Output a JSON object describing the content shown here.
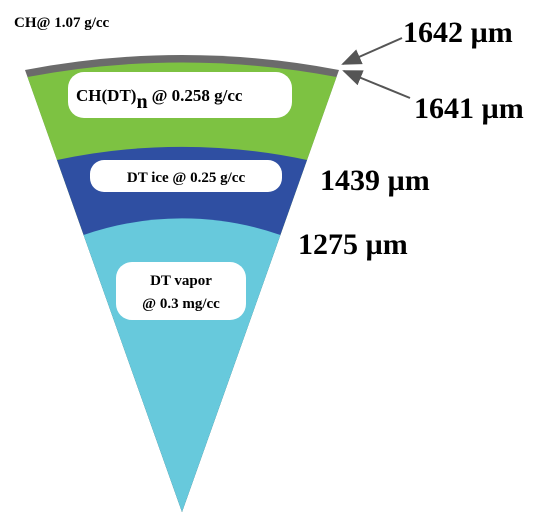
{
  "shell_label": "CH@ 1.07 g/cc",
  "layers": [
    {
      "name": "CH(DT)",
      "subscript": "n",
      "density": "@ 0.258 g/cc"
    },
    {
      "name": "DT ice @ 0.25 g/cc"
    },
    {
      "name": "DT vapor",
      "density": "@ 0.3 mg/cc"
    }
  ],
  "radii": [
    "1642 µm",
    "1641 µm",
    "1439 µm",
    "1275 µm"
  ]
}
